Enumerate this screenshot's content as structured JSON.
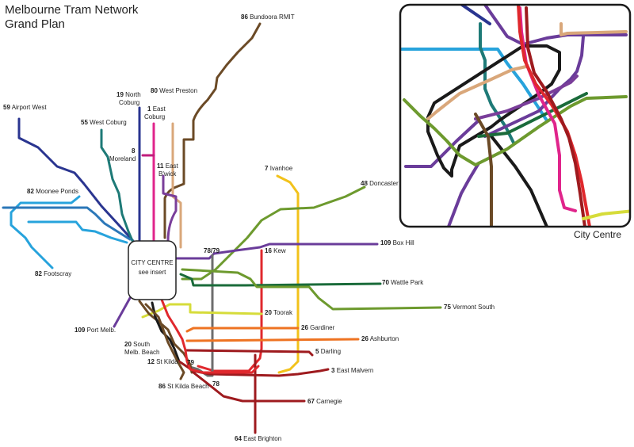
{
  "title_line1": "Melbourne Tram Network",
  "title_line2": "Grand Plan",
  "hub": {
    "line1": "CITY CENTRE",
    "line2": "see insert"
  },
  "inset_label": "City Centre",
  "routes": [
    {
      "id": "r86",
      "number": "86",
      "name": "Bundoora RMIT",
      "color": "#6b4a26"
    },
    {
      "id": "r80",
      "number": "80",
      "name": "West Preston",
      "color": "#d9a77a"
    },
    {
      "id": "r19",
      "number": "19",
      "name": "North Coburg",
      "color": "#2a3590"
    },
    {
      "id": "r1",
      "number": "1",
      "name": "East Coburg",
      "color": "#e0248b"
    },
    {
      "id": "r59",
      "number": "59",
      "name": "Airport West",
      "color": "#2a3590"
    },
    {
      "id": "r55",
      "number": "55",
      "name": "West Coburg",
      "color": "#1e7a77"
    },
    {
      "id": "r8",
      "number": "8",
      "name": "Moreland",
      "color": "#c01d7c"
    },
    {
      "id": "r11",
      "number": "11",
      "name": "East B'wick",
      "color": "#7a3e9a"
    },
    {
      "id": "r7",
      "number": "7",
      "name": "Ivanhoe",
      "color": "#f2c21b"
    },
    {
      "id": "r48",
      "number": "48",
      "name": "Doncaster",
      "color": "#6d9a2e"
    },
    {
      "id": "r82",
      "number": "82",
      "name": "Moonee Ponds",
      "color": "#27a3dc"
    },
    {
      "id": "r82f",
      "number": "82",
      "name": "Footscray",
      "color": "#27a3dc"
    },
    {
      "id": "r109b",
      "number": "109",
      "name": "Box Hill",
      "color": "#6a3c9a"
    },
    {
      "id": "r16",
      "number": "16",
      "name": "Kew",
      "color": "#e0282d"
    },
    {
      "id": "r7879",
      "number": "78/79",
      "name": "",
      "color": "#6d6d6d"
    },
    {
      "id": "r70",
      "number": "70",
      "name": "Wattle Park",
      "color": "#1a6b3a"
    },
    {
      "id": "r75",
      "number": "75",
      "name": "Vermont South",
      "color": "#6d9a2e"
    },
    {
      "id": "r20t",
      "number": "20",
      "name": "Toorak",
      "color": "#d6dc3a"
    },
    {
      "id": "r109p",
      "number": "109",
      "name": "Port Melb.",
      "color": "#6a3c9a"
    },
    {
      "id": "r26g",
      "number": "26",
      "name": "Gardiner",
      "color": "#ee7322"
    },
    {
      "id": "r26a",
      "number": "26",
      "name": "Ashburton",
      "color": "#ee7322"
    },
    {
      "id": "r20s",
      "number": "20",
      "name": "South Melb. Beach",
      "color": "#6b4a26"
    },
    {
      "id": "r5",
      "number": "5",
      "name": "Darling",
      "color": "#9e1a1e"
    },
    {
      "id": "r12",
      "number": "12",
      "name": "St Kilda",
      "color": "#1a1a1a"
    },
    {
      "id": "r79",
      "number": "79",
      "name": "",
      "color": "#1a1a1a"
    },
    {
      "id": "r3",
      "number": "3",
      "name": "East Malvern",
      "color": "#9e1a1e"
    },
    {
      "id": "r78",
      "number": "78",
      "name": "",
      "color": "#1a1a1a"
    },
    {
      "id": "r86s",
      "number": "86",
      "name": "St Kilda Beach",
      "color": "#6b4a26"
    },
    {
      "id": "r67",
      "number": "67",
      "name": "Carnegie",
      "color": "#9e1a1e"
    },
    {
      "id": "r64",
      "number": "64",
      "name": "East Brighton",
      "color": "#9e1a1e"
    }
  ]
}
